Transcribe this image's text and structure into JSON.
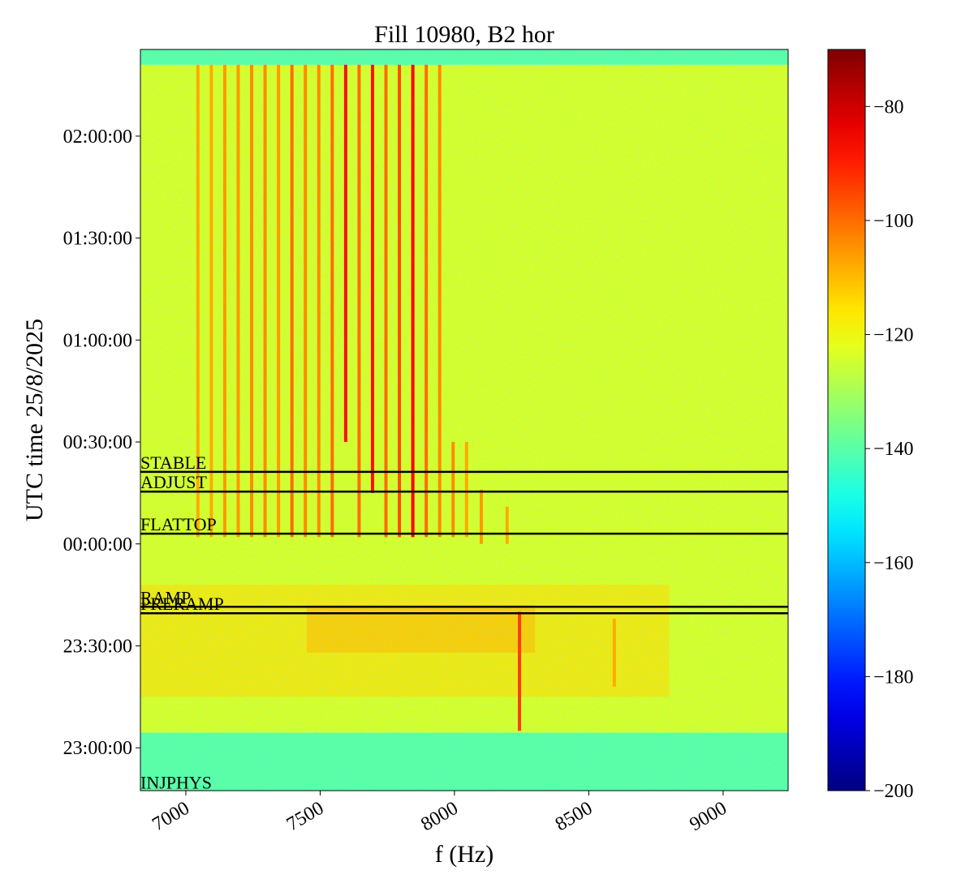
{
  "chart_data": {
    "type": "spectrogram",
    "title": "Fill 10980, B2 hor",
    "xlabel": "f (Hz)",
    "ylabel": "UTC time 25/8/2025",
    "xlim": [
      6831,
      9242
    ],
    "xticks": [
      7000,
      7500,
      8000,
      8500,
      9000
    ],
    "ylim": [
      -72.6,
      145.5
    ],
    "yticks": [
      {
        "value": -60,
        "label": "23:00:00"
      },
      {
        "value": -30,
        "label": "23:30:00"
      },
      {
        "value": 0,
        "label": "00:00:00"
      },
      {
        "value": 30,
        "label": "00:30:00"
      },
      {
        "value": 60,
        "label": "01:00:00"
      },
      {
        "value": 90,
        "label": "01:30:00"
      },
      {
        "value": 120,
        "label": "02:00:00"
      }
    ],
    "colormap": "jet",
    "clim": [
      -200,
      -70
    ],
    "cticks": [
      {
        "value": -80,
        "label": "−80"
      },
      {
        "value": -100,
        "label": "−100"
      },
      {
        "value": -120,
        "label": "−120"
      },
      {
        "value": -140,
        "label": "−140"
      },
      {
        "value": -160,
        "label": "−160"
      },
      {
        "value": -180,
        "label": "−180"
      },
      {
        "value": -200,
        "label": "−200"
      }
    ],
    "regions": [
      {
        "f0": 6831,
        "f1": 9242,
        "t0": -72.6,
        "t1": -55.5,
        "level": -140
      },
      {
        "f0": 6831,
        "f1": 9242,
        "t0": -55.5,
        "t1": 141,
        "level": -124
      },
      {
        "f0": 6831,
        "f1": 9242,
        "t0": 141,
        "t1": 145.5,
        "level": -140
      },
      {
        "f0": 6831,
        "f1": 8800,
        "t0": -45,
        "t1": -12,
        "level": -114
      },
      {
        "f0": 7450,
        "f1": 8300,
        "t0": -32,
        "t1": -18,
        "level": -110
      }
    ],
    "lines": [
      {
        "f": 7045,
        "t0": 2,
        "t1": 141,
        "level": -108
      },
      {
        "f": 7095,
        "t0": 2,
        "t1": 141,
        "level": -108
      },
      {
        "f": 7145,
        "t0": 2,
        "t1": 141,
        "level": -106
      },
      {
        "f": 7195,
        "t0": 2,
        "t1": 141,
        "level": -106
      },
      {
        "f": 7245,
        "t0": 2,
        "t1": 141,
        "level": -104
      },
      {
        "f": 7295,
        "t0": 2,
        "t1": 141,
        "level": -104
      },
      {
        "f": 7345,
        "t0": 2,
        "t1": 141,
        "level": -106
      },
      {
        "f": 7395,
        "t0": 2,
        "t1": 141,
        "level": -100
      },
      {
        "f": 7445,
        "t0": 2,
        "t1": 141,
        "level": -104
      },
      {
        "f": 7495,
        "t0": 2,
        "t1": 141,
        "level": -104
      },
      {
        "f": 7545,
        "t0": 2,
        "t1": 141,
        "level": -100
      },
      {
        "f": 7595,
        "t0": 30,
        "t1": 141,
        "level": -88
      },
      {
        "f": 7645,
        "t0": 2,
        "t1": 141,
        "level": -100
      },
      {
        "f": 7695,
        "t0": 15,
        "t1": 141,
        "level": -88
      },
      {
        "f": 7745,
        "t0": 2,
        "t1": 141,
        "level": -100
      },
      {
        "f": 7795,
        "t0": 2,
        "t1": 141,
        "level": -96
      },
      {
        "f": 7845,
        "t0": 2,
        "t1": 141,
        "level": -86
      },
      {
        "f": 7895,
        "t0": 2,
        "t1": 141,
        "level": -100
      },
      {
        "f": 7945,
        "t0": 2,
        "t1": 141,
        "level": -104
      },
      {
        "f": 7995,
        "t0": 2,
        "t1": 30,
        "level": -104
      },
      {
        "f": 8045,
        "t0": 2,
        "t1": 30,
        "level": -108
      },
      {
        "f": 8100,
        "t0": 0,
        "t1": 16,
        "level": -106
      },
      {
        "f": 8196,
        "t0": 0,
        "t1": 11,
        "level": -108
      },
      {
        "f": 8242,
        "t0": -55,
        "t1": -20,
        "level": -94
      },
      {
        "f": 8595,
        "t0": -42,
        "t1": -22,
        "level": -108
      }
    ],
    "events": [
      {
        "name": "STABLE",
        "time": 21.2
      },
      {
        "name": "ADJUST",
        "time": 15.4
      },
      {
        "name": "FLATTOP",
        "time": 3.0
      },
      {
        "name": "RAMP",
        "time": -18.5
      },
      {
        "name": "PRERAMP",
        "time": -20.4
      },
      {
        "name": "INJPHYS",
        "time": -73
      }
    ]
  }
}
